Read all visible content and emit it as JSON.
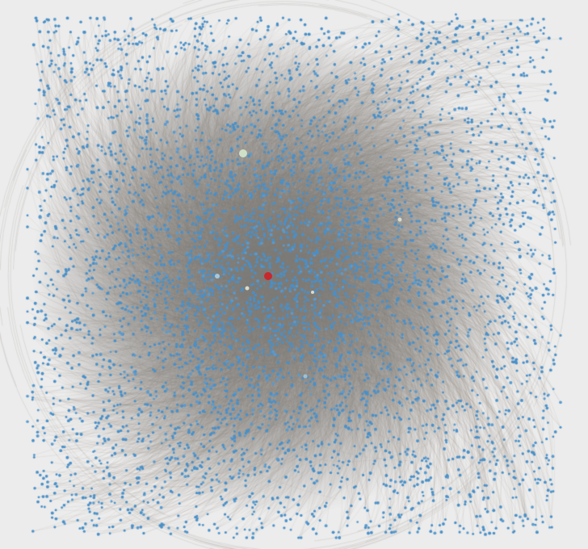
{
  "graph": {
    "type": "network-graph",
    "layout": "force-directed",
    "background": "#ececec",
    "node_color": "#4a90c8",
    "edge_color": "#8a8378",
    "highlight_node_color": "#c8282c",
    "secondary_node_colors": [
      "#cfe0c9",
      "#a8c8d8",
      "#d9dccb",
      "#9fbfd3"
    ],
    "labels": []
  }
}
